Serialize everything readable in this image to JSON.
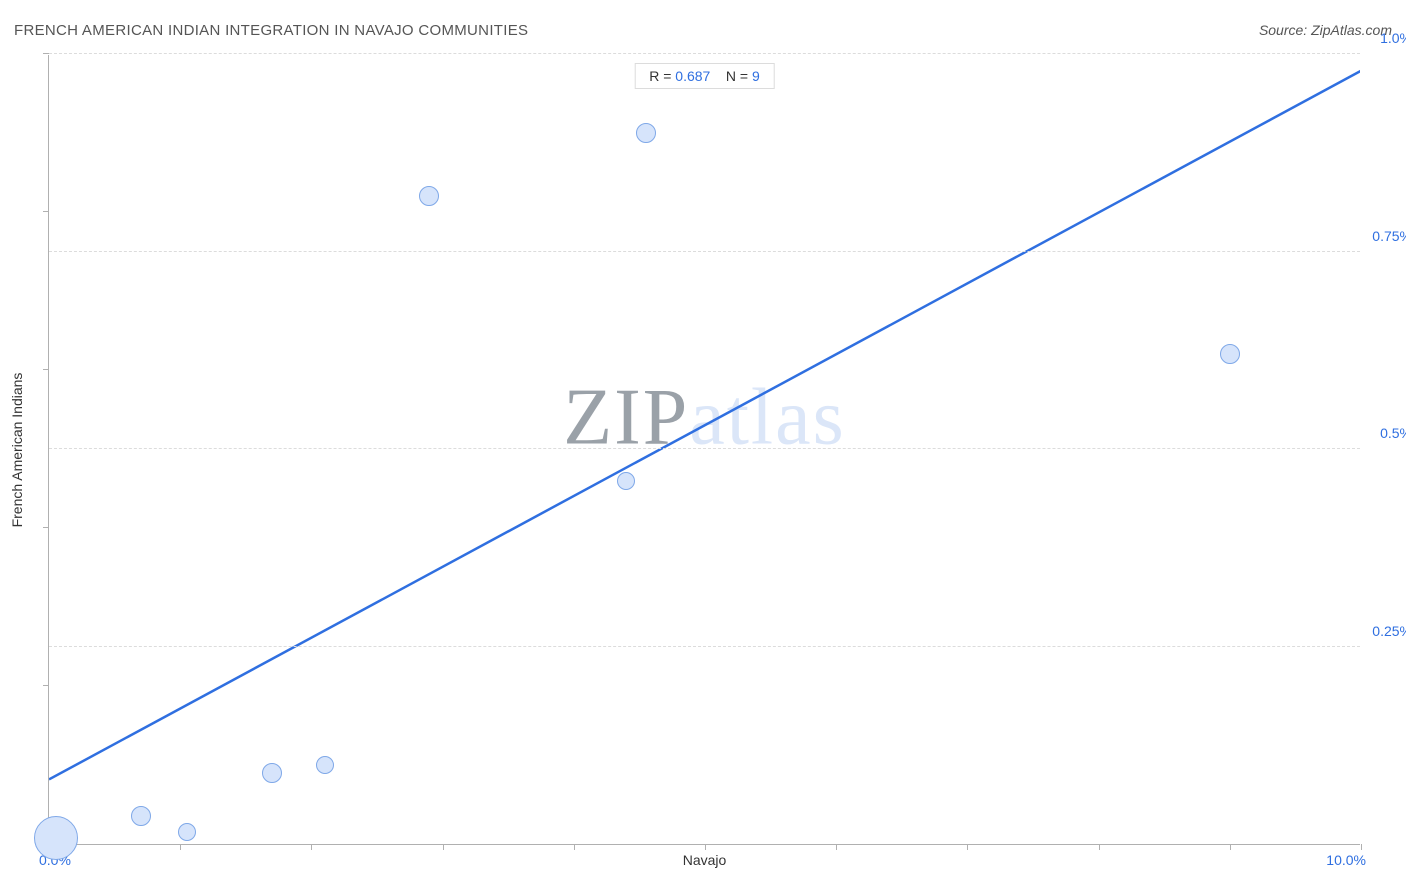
{
  "title": "FRENCH AMERICAN INDIAN INTEGRATION IN NAVAJO COMMUNITIES",
  "source": "Source: ZipAtlas.com",
  "watermark": {
    "dark": "ZIP",
    "light": "atlas"
  },
  "chart": {
    "type": "scatter",
    "xlabel": "Navajo",
    "ylabel": "French American Indians",
    "xlim": [
      0.0,
      10.0
    ],
    "ylim": [
      0.0,
      1.0
    ],
    "x_min_label": "0.0%",
    "x_max_label": "10.0%",
    "xtick_positions": [
      0.0,
      1.0,
      2.0,
      3.0,
      4.0,
      5.0,
      6.0,
      7.0,
      8.0,
      9.0,
      10.0
    ],
    "ytick_positions": [
      0.0,
      0.2,
      0.4,
      0.6,
      0.8,
      1.0
    ],
    "y_gridlines": [
      {
        "value": 0.25,
        "label": "0.25%"
      },
      {
        "value": 0.5,
        "label": "0.5%"
      },
      {
        "value": 0.75,
        "label": "0.75%"
      },
      {
        "value": 1.0,
        "label": "1.0%"
      }
    ],
    "points": [
      {
        "x": 0.05,
        "y": 0.008,
        "r": 22
      },
      {
        "x": 0.7,
        "y": 0.035,
        "r": 10
      },
      {
        "x": 1.05,
        "y": 0.015,
        "r": 9
      },
      {
        "x": 1.7,
        "y": 0.09,
        "r": 10
      },
      {
        "x": 2.1,
        "y": 0.1,
        "r": 9
      },
      {
        "x": 2.9,
        "y": 0.82,
        "r": 10
      },
      {
        "x": 4.4,
        "y": 0.46,
        "r": 9
      },
      {
        "x": 4.55,
        "y": 0.9,
        "r": 10
      },
      {
        "x": 9.0,
        "y": 0.62,
        "r": 10
      }
    ],
    "trendline": {
      "y_at_x0": 0.083,
      "y_at_x10": 0.98
    },
    "point_fill": "#d6e4fb",
    "point_stroke": "#7fa8e8",
    "trend_color": "#2f6fe0",
    "grid_color": "#dcdcdc",
    "axis_color": "#b0b0b0",
    "value_color": "#2f6fe0",
    "label_color": "#333333",
    "label_fontsize": 14,
    "title_fontsize": 15,
    "background_color": "#ffffff"
  },
  "stats": {
    "r_label": "R = ",
    "r_value": "0.687",
    "n_label": "N = ",
    "n_value": "9"
  }
}
